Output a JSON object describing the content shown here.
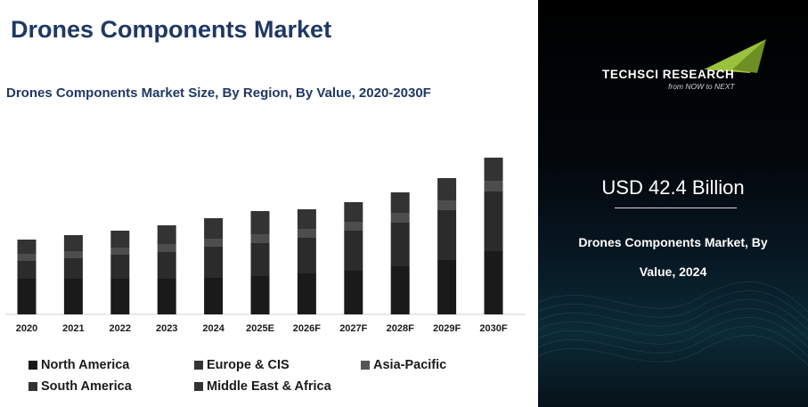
{
  "header": {
    "title": "Drones Components Market",
    "subtitle": "Drones Components Market Size, By Region, By Value, 2020-2030F"
  },
  "chart_data": {
    "type": "bar",
    "stacked": true,
    "categories": [
      "2020",
      "2021",
      "2022",
      "2023",
      "2024",
      "2025E",
      "2026F",
      "2027F",
      "2028F",
      "2029F",
      "2030F"
    ],
    "series": [
      {
        "name": "North America",
        "color": "#1a1a1a",
        "values": [
          40,
          40,
          40,
          40,
          41,
          43,
          46,
          49,
          54,
          61,
          71
        ]
      },
      {
        "name": "Europe & CIS",
        "color": "#2b2b2b",
        "values": [
          20,
          23,
          27,
          30,
          35,
          37,
          40,
          45,
          49,
          56,
          67
        ]
      },
      {
        "name": "Asia-Pacific",
        "color": "#4d4d4d",
        "values": [
          8,
          8,
          8,
          9,
          9,
          10,
          10,
          10,
          11,
          11,
          12
        ]
      },
      {
        "name": "South America",
        "color": "#3a3a3a",
        "values": [
          0,
          0,
          0,
          0,
          0,
          0,
          0,
          0,
          0,
          0,
          0
        ]
      },
      {
        "name": "Middle East & Africa",
        "color": "#333333",
        "values": [
          16,
          18,
          19,
          21,
          23,
          26,
          22,
          22,
          23,
          25,
          26
        ]
      }
    ],
    "ylim": [
      0,
      180
    ],
    "xlabel": "",
    "ylabel": ""
  },
  "legend": {
    "items": [
      {
        "label": "North America",
        "color": "#1a1a1a"
      },
      {
        "label": "Europe & CIS",
        "color": "#333333"
      },
      {
        "label": "Asia-Pacific",
        "color": "#555555"
      },
      {
        "label": "South America",
        "color": "#333333"
      },
      {
        "label": "Middle East & Africa",
        "color": "#333333"
      }
    ]
  },
  "sidebar": {
    "logo_name": "TECHSCI RESEARCH",
    "logo_tagline": "from NOW to NEXT",
    "market_value": "USD 42.4 Billion",
    "market_desc_line1": "Drones Components Market, By",
    "market_desc_line2": "Value, 2024"
  }
}
